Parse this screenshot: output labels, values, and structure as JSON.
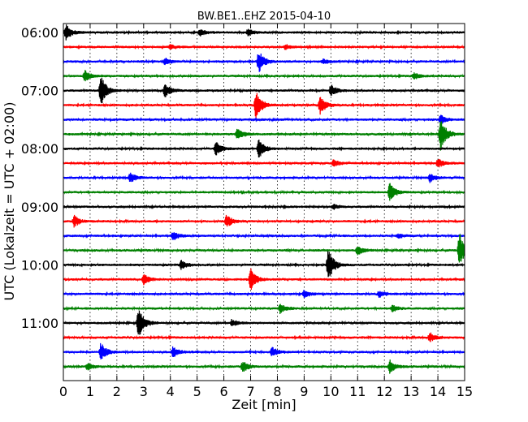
{
  "chart_data": {
    "type": "line",
    "title": "BW.BE1..EHZ 2015-04-10",
    "xlabel": "Zeit  [min]",
    "ylabel": "UTC (Lokalzeit = UTC + 02:00)",
    "xlim": [
      0,
      15
    ],
    "x_ticks": [
      "0",
      "1",
      "2",
      "3",
      "4",
      "5",
      "6",
      "7",
      "8",
      "9",
      "10",
      "11",
      "12",
      "13",
      "14",
      "15"
    ],
    "y_ticks": [
      "06:00",
      "07:00",
      "08:00",
      "09:00",
      "10:00",
      "11:00"
    ],
    "trace_interval_minutes": 15,
    "first_trace": "06:00",
    "grid": true,
    "color_cycle": [
      "#000000",
      "#ff0000",
      "#0000ff",
      "#008000"
    ],
    "traces": [
      {
        "start": "06:00",
        "color": "#000000",
        "events": [
          {
            "t": 0.1,
            "amp": 0.7
          },
          {
            "t": 5.1,
            "amp": 0.3
          },
          {
            "t": 6.9,
            "amp": 0.3
          }
        ]
      },
      {
        "start": "06:15",
        "color": "#ff0000",
        "events": [
          {
            "t": 4.0,
            "amp": 0.2
          },
          {
            "t": 8.3,
            "amp": 0.2
          }
        ]
      },
      {
        "start": "06:30",
        "color": "#0000ff",
        "events": [
          {
            "t": 3.8,
            "amp": 0.3
          },
          {
            "t": 7.3,
            "amp": 1.0
          },
          {
            "t": 9.7,
            "amp": 0.2
          }
        ]
      },
      {
        "start": "06:45",
        "color": "#008000",
        "events": [
          {
            "t": 0.8,
            "amp": 0.5
          },
          {
            "t": 13.1,
            "amp": 0.3
          }
        ]
      },
      {
        "start": "07:00",
        "color": "#000000",
        "events": [
          {
            "t": 1.4,
            "amp": 1.4
          },
          {
            "t": 3.8,
            "amp": 0.6
          },
          {
            "t": 10.0,
            "amp": 0.5
          }
        ]
      },
      {
        "start": "07:15",
        "color": "#ff0000",
        "events": [
          {
            "t": 7.2,
            "amp": 1.4
          },
          {
            "t": 9.6,
            "amp": 0.8
          }
        ]
      },
      {
        "start": "07:30",
        "color": "#0000ff",
        "events": [
          {
            "t": 14.1,
            "amp": 0.4
          }
        ]
      },
      {
        "start": "07:45",
        "color": "#008000",
        "events": [
          {
            "t": 6.5,
            "amp": 0.5
          },
          {
            "t": 14.1,
            "amp": 1.5
          }
        ]
      },
      {
        "start": "08:00",
        "color": "#000000",
        "events": [
          {
            "t": 5.7,
            "amp": 0.6
          },
          {
            "t": 7.3,
            "amp": 0.9
          }
        ]
      },
      {
        "start": "08:15",
        "color": "#ff0000",
        "events": [
          {
            "t": 10.1,
            "amp": 0.3
          },
          {
            "t": 14.0,
            "amp": 0.4
          }
        ]
      },
      {
        "start": "08:30",
        "color": "#0000ff",
        "events": [
          {
            "t": 2.5,
            "amp": 0.4
          },
          {
            "t": 13.7,
            "amp": 0.4
          }
        ]
      },
      {
        "start": "08:45",
        "color": "#008000",
        "events": [
          {
            "t": 12.2,
            "amp": 0.8
          }
        ]
      },
      {
        "start": "09:00",
        "color": "#000000",
        "events": [
          {
            "t": 10.1,
            "amp": 0.2
          }
        ]
      },
      {
        "start": "09:15",
        "color": "#ff0000",
        "events": [
          {
            "t": 0.4,
            "amp": 0.5
          },
          {
            "t": 6.1,
            "amp": 0.6
          }
        ]
      },
      {
        "start": "09:30",
        "color": "#0000ff",
        "events": [
          {
            "t": 4.1,
            "amp": 0.4
          },
          {
            "t": 12.5,
            "amp": 0.2
          }
        ]
      },
      {
        "start": "09:45",
        "color": "#008000",
        "events": [
          {
            "t": 11.0,
            "amp": 0.4
          },
          {
            "t": 14.8,
            "amp": 1.6
          }
        ]
      },
      {
        "start": "10:00",
        "color": "#000000",
        "events": [
          {
            "t": 4.4,
            "amp": 0.4
          },
          {
            "t": 9.9,
            "amp": 1.5
          }
        ]
      },
      {
        "start": "10:15",
        "color": "#ff0000",
        "events": [
          {
            "t": 3.0,
            "amp": 0.5
          },
          {
            "t": 7.0,
            "amp": 1.0
          }
        ]
      },
      {
        "start": "10:30",
        "color": "#0000ff",
        "events": [
          {
            "t": 9.0,
            "amp": 0.3
          },
          {
            "t": 11.8,
            "amp": 0.3
          }
        ]
      },
      {
        "start": "10:45",
        "color": "#008000",
        "events": [
          {
            "t": 8.1,
            "amp": 0.4
          },
          {
            "t": 12.3,
            "amp": 0.3
          }
        ]
      },
      {
        "start": "11:00",
        "color": "#000000",
        "events": [
          {
            "t": 2.8,
            "amp": 1.5
          },
          {
            "t": 6.3,
            "amp": 0.3
          }
        ]
      },
      {
        "start": "11:15",
        "color": "#ff0000",
        "events": [
          {
            "t": 13.7,
            "amp": 0.4
          }
        ]
      },
      {
        "start": "11:30",
        "color": "#0000ff",
        "events": [
          {
            "t": 1.4,
            "amp": 0.8
          },
          {
            "t": 4.1,
            "amp": 0.5
          },
          {
            "t": 7.8,
            "amp": 0.4
          }
        ]
      },
      {
        "start": "11:45",
        "color": "#008000",
        "events": [
          {
            "t": 0.9,
            "amp": 0.3
          },
          {
            "t": 6.7,
            "amp": 0.5
          },
          {
            "t": 12.2,
            "amp": 0.6
          }
        ]
      }
    ]
  }
}
